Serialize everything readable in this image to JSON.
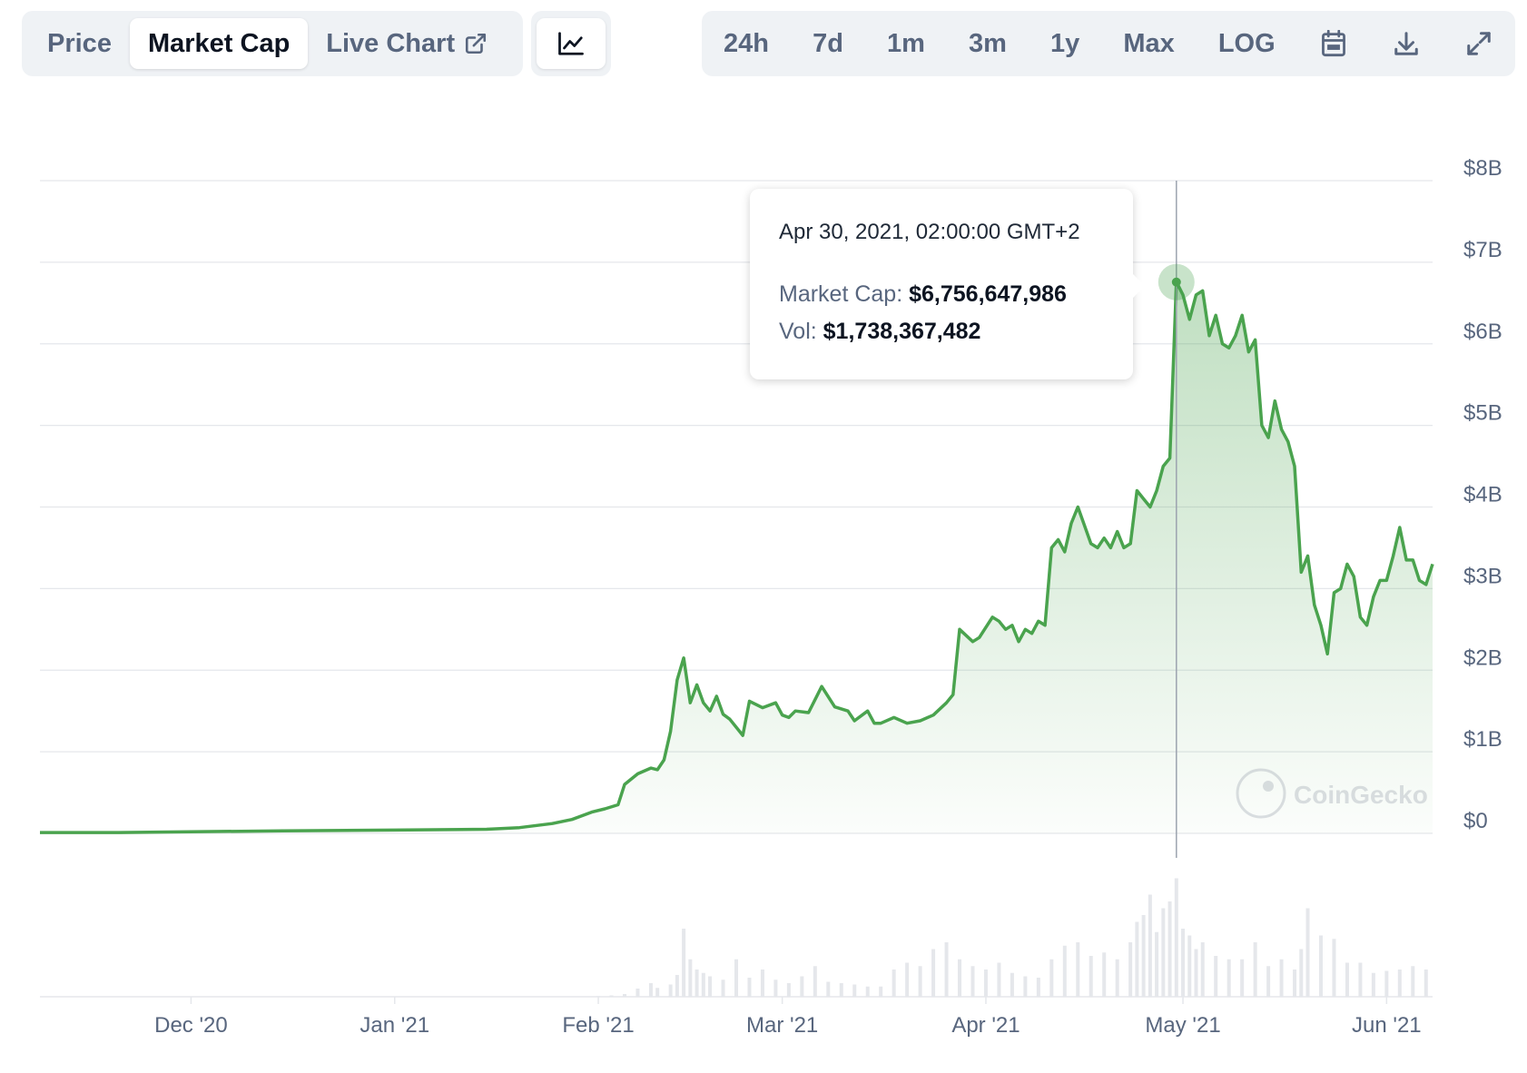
{
  "tabs": [
    {
      "label": "Price"
    },
    {
      "label": "Market Cap"
    },
    {
      "label": "Live Chart"
    }
  ],
  "ranges": [
    "24h",
    "7d",
    "1m",
    "3m",
    "1y",
    "Max",
    "LOG"
  ],
  "tooltip": {
    "date": "Apr 30, 2021, 02:00:00 GMT+2",
    "market_cap_label": "Market Cap:",
    "market_cap_value": "$6,756,647,986",
    "vol_label": "Vol:",
    "vol_value": "$1,738,367,482"
  },
  "watermark": "CoinGecko",
  "colors": {
    "line": "#4aa34e",
    "grid": "#e5e7eb",
    "volume": "#e5e7eb",
    "axis_text": "#58667e"
  },
  "chart_data": {
    "type": "area",
    "title": "",
    "xlabel": "",
    "ylabel": "",
    "x_ticks": [
      "Dec '20",
      "Jan '21",
      "Feb '21",
      "Mar '21",
      "Apr '21",
      "May '21",
      "Jun '21"
    ],
    "x_tick_dates": [
      "2020-12-01",
      "2021-01-01",
      "2021-02-01",
      "2021-03-01",
      "2021-04-01",
      "2021-05-01",
      "2021-06-01"
    ],
    "y_ticks": [
      "$0",
      "$1B",
      "$2B",
      "$3B",
      "$4B",
      "$5B",
      "$6B",
      "$7B",
      "$8B"
    ],
    "ylim": [
      0,
      8000000000
    ],
    "xlim": [
      "2020-11-08",
      "2021-06-08"
    ],
    "grid": true,
    "highlight": {
      "x": "2021-04-30",
      "y": 6756647986
    },
    "series": [
      {
        "name": "Market Cap",
        "x": [
          "2020-11-08",
          "2020-11-20",
          "2020-12-01",
          "2020-12-15",
          "2021-01-01",
          "2021-01-15",
          "2021-01-20",
          "2021-01-25",
          "2021-01-28",
          "2021-01-31",
          "2021-02-02",
          "2021-02-04",
          "2021-02-05",
          "2021-02-07",
          "2021-02-09",
          "2021-02-10",
          "2021-02-11",
          "2021-02-12",
          "2021-02-13",
          "2021-02-14",
          "2021-02-15",
          "2021-02-16",
          "2021-02-17",
          "2021-02-18",
          "2021-02-19",
          "2021-02-20",
          "2021-02-21",
          "2021-02-23",
          "2021-02-24",
          "2021-02-26",
          "2021-02-28",
          "2021-03-01",
          "2021-03-02",
          "2021-03-03",
          "2021-03-05",
          "2021-03-07",
          "2021-03-09",
          "2021-03-11",
          "2021-03-12",
          "2021-03-14",
          "2021-03-15",
          "2021-03-16",
          "2021-03-18",
          "2021-03-20",
          "2021-03-22",
          "2021-03-24",
          "2021-03-26",
          "2021-03-27",
          "2021-03-28",
          "2021-03-30",
          "2021-03-31",
          "2021-04-02",
          "2021-04-03",
          "2021-04-04",
          "2021-04-05",
          "2021-04-06",
          "2021-04-07",
          "2021-04-08",
          "2021-04-09",
          "2021-04-10",
          "2021-04-11",
          "2021-04-12",
          "2021-04-13",
          "2021-04-14",
          "2021-04-15",
          "2021-04-17",
          "2021-04-18",
          "2021-04-19",
          "2021-04-20",
          "2021-04-21",
          "2021-04-22",
          "2021-04-23",
          "2021-04-24",
          "2021-04-25",
          "2021-04-26",
          "2021-04-27",
          "2021-04-28",
          "2021-04-29",
          "2021-04-30",
          "2021-05-01",
          "2021-05-02",
          "2021-05-03",
          "2021-05-04",
          "2021-05-05",
          "2021-05-06",
          "2021-05-07",
          "2021-05-08",
          "2021-05-09",
          "2021-05-10",
          "2021-05-11",
          "2021-05-12",
          "2021-05-13",
          "2021-05-14",
          "2021-05-15",
          "2021-05-16",
          "2021-05-17",
          "2021-05-18",
          "2021-05-19",
          "2021-05-20",
          "2021-05-21",
          "2021-05-22",
          "2021-05-23",
          "2021-05-24",
          "2021-05-25",
          "2021-05-26",
          "2021-05-27",
          "2021-05-28",
          "2021-05-29",
          "2021-05-30",
          "2021-05-31",
          "2021-06-01",
          "2021-06-02",
          "2021-06-03",
          "2021-06-04",
          "2021-06-05",
          "2021-06-06",
          "2021-06-07",
          "2021-06-08"
        ],
        "values": [
          10000000.0,
          10000000.0,
          20000000.0,
          30000000.0,
          40000000.0,
          50000000.0,
          70000000.0,
          120000000.0,
          170000000.0,
          260000000.0,
          300000000.0,
          350000000.0,
          600000000.0,
          730000000.0,
          800000000.0,
          780000000.0,
          900000000.0,
          1250000000.0,
          1880000000.0,
          2150000000.0,
          1600000000.0,
          1820000000.0,
          1600000000.0,
          1500000000.0,
          1680000000.0,
          1460000000.0,
          1400000000.0,
          1200000000.0,
          1620000000.0,
          1540000000.0,
          1600000000.0,
          1450000000.0,
          1420000000.0,
          1500000000.0,
          1480000000.0,
          1800000000.0,
          1550000000.0,
          1500000000.0,
          1380000000.0,
          1500000000.0,
          1350000000.0,
          1350000000.0,
          1420000000.0,
          1350000000.0,
          1380000000.0,
          1450000000.0,
          1600000000.0,
          1700000000.0,
          2500000000.0,
          2350000000.0,
          2400000000.0,
          2650000000.0,
          2600000000.0,
          2500000000.0,
          2550000000.0,
          2350000000.0,
          2500000000.0,
          2450000000.0,
          2600000000.0,
          2550000000.0,
          3500000000.0,
          3600000000.0,
          3450000000.0,
          3800000000.0,
          4000000000.0,
          3550000000.0,
          3500000000.0,
          3620000000.0,
          3500000000.0,
          3700000000.0,
          3500000000.0,
          3550000000.0,
          4200000000.0,
          4100000000.0,
          4000000000.0,
          4200000000.0,
          4500000000.0,
          4600000000.0,
          6760000000.0,
          6600000000.0,
          6300000000.0,
          6600000000.0,
          6650000000.0,
          6100000000.0,
          6350000000.0,
          6000000000.0,
          5950000000.0,
          6100000000.0,
          6350000000.0,
          5900000000.0,
          6050000000.0,
          5000000000.0,
          4850000000.0,
          5300000000.0,
          4950000000.0,
          4800000000.0,
          4500000000.0,
          3200000000.0,
          3400000000.0,
          2800000000.0,
          2550000000.0,
          2200000000.0,
          2950000000.0,
          3000000000.0,
          3300000000.0,
          3150000000.0,
          2650000000.0,
          2550000000.0,
          2900000000.0,
          3100000000.0,
          3100000000.0,
          3400000000.0,
          3750000000.0,
          3350000000.0,
          3350000000.0,
          3100000000.0,
          3050000000.0,
          3300000000.0
        ]
      },
      {
        "name": "Volume",
        "x": [
          "2021-02-01",
          "2021-02-03",
          "2021-02-05",
          "2021-02-07",
          "2021-02-09",
          "2021-02-10",
          "2021-02-12",
          "2021-02-13",
          "2021-02-14",
          "2021-02-15",
          "2021-02-16",
          "2021-02-17",
          "2021-02-18",
          "2021-02-20",
          "2021-02-22",
          "2021-02-24",
          "2021-02-26",
          "2021-02-28",
          "2021-03-02",
          "2021-03-04",
          "2021-03-06",
          "2021-03-08",
          "2021-03-10",
          "2021-03-12",
          "2021-03-14",
          "2021-03-16",
          "2021-03-18",
          "2021-03-20",
          "2021-03-22",
          "2021-03-24",
          "2021-03-26",
          "2021-03-28",
          "2021-03-30",
          "2021-04-01",
          "2021-04-03",
          "2021-04-05",
          "2021-04-07",
          "2021-04-09",
          "2021-04-11",
          "2021-04-13",
          "2021-04-15",
          "2021-04-17",
          "2021-04-19",
          "2021-04-21",
          "2021-04-23",
          "2021-04-24",
          "2021-04-25",
          "2021-04-26",
          "2021-04-27",
          "2021-04-28",
          "2021-04-29",
          "2021-04-30",
          "2021-05-01",
          "2021-05-02",
          "2021-05-03",
          "2021-05-04",
          "2021-05-06",
          "2021-05-08",
          "2021-05-10",
          "2021-05-12",
          "2021-05-14",
          "2021-05-16",
          "2021-05-18",
          "2021-05-19",
          "2021-05-20",
          "2021-05-22",
          "2021-05-24",
          "2021-05-26",
          "2021-05-28",
          "2021-05-30",
          "2021-06-01",
          "2021-06-03",
          "2021-06-05",
          "2021-06-07"
        ],
        "values": [
          10000000.0,
          20000000.0,
          40000000.0,
          120000000.0,
          200000000.0,
          130000000.0,
          180000000.0,
          320000000.0,
          1000000000.0,
          550000000.0,
          400000000.0,
          350000000.0,
          300000000.0,
          250000000.0,
          550000000.0,
          280000000.0,
          400000000.0,
          250000000.0,
          200000000.0,
          300000000.0,
          450000000.0,
          220000000.0,
          200000000.0,
          180000000.0,
          150000000.0,
          150000000.0,
          400000000.0,
          500000000.0,
          450000000.0,
          700000000.0,
          800000000.0,
          550000000.0,
          450000000.0,
          400000000.0,
          500000000.0,
          350000000.0,
          300000000.0,
          280000000.0,
          550000000.0,
          750000000.0,
          800000000.0,
          600000000.0,
          650000000.0,
          550000000.0,
          800000000.0,
          1100000000.0,
          1200000000.0,
          1500000000.0,
          950000000.0,
          1300000000.0,
          1400000000.0,
          1740000000.0,
          1000000000.0,
          900000000.0,
          700000000.0,
          800000000.0,
          600000000.0,
          550000000.0,
          550000000.0,
          800000000.0,
          450000000.0,
          550000000.0,
          400000000.0,
          700000000.0,
          1300000000.0,
          900000000.0,
          850000000.0,
          500000000.0,
          500000000.0,
          350000000.0,
          380000000.0,
          400000000.0,
          450000000.0,
          400000000.0
        ]
      }
    ]
  }
}
